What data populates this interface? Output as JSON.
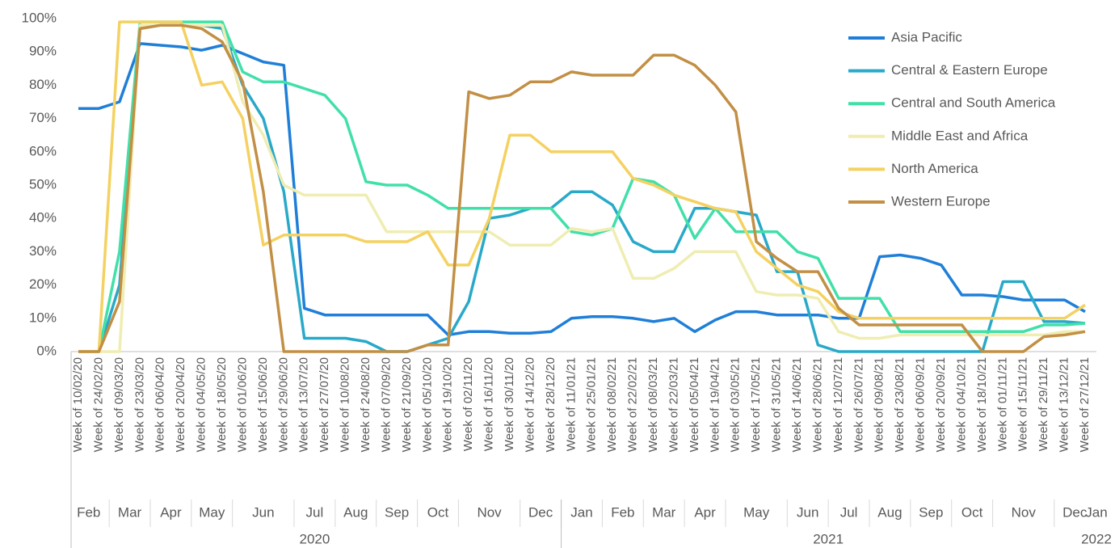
{
  "chart_data": {
    "type": "line",
    "categories": [
      "Week of 10/02/20",
      "Week of 24/02/20",
      "Week of 09/03/20",
      "Week of 23/03/20",
      "Week of 06/04/20",
      "Week of 20/04/20",
      "Week of 04/05/20",
      "Week of 18/05/20",
      "Week of 01/06/20",
      "Week of 15/06/20",
      "Week of 29/06/20",
      "Week of 13/07/20",
      "Week of 27/07/20",
      "Week of 10/08/20",
      "Week of 24/08/20",
      "Week of 07/09/20",
      "Week of 21/09/20",
      "Week of 05/10/20",
      "Week of 19/10/20",
      "Week of 02/11/20",
      "Week of 16/11/20",
      "Week of 30/11/20",
      "Week of 14/12/20",
      "Week of 28/12/20",
      "Week of 11/01/21",
      "Week of 25/01/21",
      "Week of 08/02/21",
      "Week of 22/02/21",
      "Week of 08/03/21",
      "Week of 22/03/21",
      "Week of 05/04/21",
      "Week of 19/04/21",
      "Week of 03/05/21",
      "Week of 17/05/21",
      "Week of 31/05/21",
      "Week of 14/06/21",
      "Week of 28/06/21",
      "Week of 12/07/21",
      "Week of 26/07/21",
      "Week of 09/08/21",
      "Week of 23/08/21",
      "Week of 06/09/21",
      "Week of 20/09/21",
      "Week of 04/10/21",
      "Week of 18/10/21",
      "Week of 01/11/21",
      "Week of 15/11/21",
      "Week of 29/11/21",
      "Week of 13/12/21",
      "Week of 27/12/21"
    ],
    "months": [
      "Feb",
      "Mar",
      "Apr",
      "May",
      "Jun",
      "Jul",
      "Aug",
      "Sep",
      "Oct",
      "Nov",
      "Dec",
      "Jan",
      "Feb",
      "Mar",
      "Apr",
      "May",
      "Jun",
      "Jul",
      "Aug",
      "Sep",
      "Oct",
      "Nov",
      "Dec",
      "Jan"
    ],
    "years": [
      "2020",
      "2021",
      "2022"
    ],
    "series": [
      {
        "name": "Asia Pacific",
        "color": "#1f7fd8",
        "values": [
          73,
          73,
          75,
          92.5,
          92,
          91.5,
          90.5,
          92,
          89.5,
          87,
          86,
          13,
          11,
          11,
          11,
          11,
          11,
          11,
          5,
          6,
          6,
          5.5,
          5.5,
          6,
          10,
          10.5,
          10.5,
          10,
          9,
          10,
          6,
          9.5,
          12,
          12,
          11,
          11,
          11,
          10,
          10,
          28.5,
          29,
          28,
          26,
          17,
          17,
          16.5,
          15.5,
          15.5,
          15.5,
          12
        ]
      },
      {
        "name": "Central & Eastern Europe",
        "color": "#29a9c9",
        "values": [
          0,
          0,
          20,
          97,
          98,
          98,
          98,
          97,
          80,
          70,
          48,
          4,
          4,
          4,
          3,
          0,
          0,
          2,
          4,
          15,
          40,
          41,
          43,
          43,
          48,
          48,
          44,
          33,
          30,
          30,
          43,
          43,
          42,
          41,
          24,
          24,
          2,
          0,
          0,
          0,
          0,
          0,
          0,
          0,
          0,
          21,
          21,
          9,
          9,
          8.5
        ]
      },
      {
        "name": "Central and South America",
        "color": "#41e0a8",
        "values": [
          0,
          0,
          30,
          99,
          99,
          99,
          99,
          99,
          84,
          81,
          81,
          79,
          77,
          70,
          51,
          50,
          50,
          47,
          43,
          43,
          43,
          43,
          43,
          43,
          36,
          35,
          37,
          52,
          51,
          47,
          34,
          43,
          36,
          36,
          36,
          30,
          28,
          16,
          16,
          16,
          6,
          6,
          6,
          6,
          6,
          6,
          6,
          8,
          8,
          8.5
        ]
      },
      {
        "name": "Middle East and Africa",
        "color": "#efedb2",
        "values": [
          0,
          0,
          0,
          98,
          98,
          98,
          98,
          98,
          75,
          65,
          50,
          47,
          47,
          47,
          47,
          36,
          36,
          36,
          36,
          36,
          36,
          32,
          32,
          32,
          37,
          36,
          37,
          22,
          22,
          25,
          30,
          30,
          30,
          18,
          17,
          17,
          16,
          6,
          4,
          4,
          5,
          5,
          5,
          5,
          5,
          5,
          5,
          5,
          6,
          6
        ]
      },
      {
        "name": "North America",
        "color": "#f4d160",
        "values": [
          0,
          0,
          99,
          99,
          99,
          99,
          80,
          81,
          70,
          32,
          35,
          35,
          35,
          35,
          33,
          33,
          33,
          36,
          26,
          26,
          40,
          65,
          65,
          60,
          60,
          60,
          60,
          52,
          50,
          47,
          45,
          43,
          42,
          30,
          25,
          20,
          18,
          12,
          10,
          10,
          10,
          10,
          10,
          10,
          10,
          10,
          10,
          10,
          10,
          14
        ]
      },
      {
        "name": "Western Europe",
        "color": "#c28f45",
        "values": [
          0,
          0,
          15,
          97,
          98,
          98,
          97,
          93,
          81,
          48,
          0,
          0,
          0,
          0,
          0,
          0,
          0,
          2,
          2,
          78,
          76,
          77,
          81,
          81,
          84,
          83,
          83,
          83,
          89,
          89,
          86,
          80,
          72,
          33,
          28,
          24,
          24,
          13,
          8,
          8,
          8,
          8,
          8,
          8,
          0,
          0,
          0,
          4.5,
          5,
          6
        ]
      }
    ],
    "ylim": [
      0,
      100
    ],
    "yticks": [
      {
        "value": 0,
        "label": "0%"
      },
      {
        "value": 10,
        "label": "10%"
      },
      {
        "value": 20,
        "label": "20%"
      },
      {
        "value": 30,
        "label": "30%"
      },
      {
        "value": 40,
        "label": "40%"
      },
      {
        "value": 50,
        "label": "50%"
      },
      {
        "value": 60,
        "label": "60%"
      },
      {
        "value": 70,
        "label": "70%"
      },
      {
        "value": 80,
        "label": "80%"
      },
      {
        "value": 90,
        "label": "90%"
      },
      {
        "value": 100,
        "label": "100%"
      }
    ],
    "grid": false,
    "legend": "top-right"
  }
}
